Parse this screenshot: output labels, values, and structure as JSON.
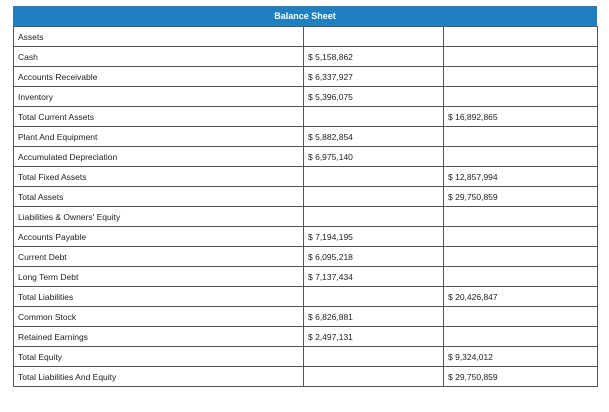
{
  "header": {
    "title": "Balance Sheet"
  },
  "table": {
    "rows": [
      {
        "label": "Assets"
      },
      {
        "label": "Cash",
        "amount": "$ 5,158,862"
      },
      {
        "label": "Accounts Receivable",
        "amount": "$ 6,337,927"
      },
      {
        "label": "Inventory",
        "amount": "$ 5,396,075"
      },
      {
        "label": "Total Current Assets",
        "total": "$ 16,892,865"
      },
      {
        "label": "Plant And Equipment",
        "amount": "$ 5,882,854"
      },
      {
        "label": "Accumulated Depreciation",
        "amount": "$ 6,975,140"
      },
      {
        "label": "Total Fixed Assets",
        "total": "$ 12,857,994"
      },
      {
        "label": "Total Assets",
        "total": "$ 29,750,859"
      },
      {
        "label": "Liabilities & Owners' Equity"
      },
      {
        "label": "Accounts Payable",
        "amount": "$ 7,194,195"
      },
      {
        "label": "Current Debt",
        "amount": "$ 6,095,218"
      },
      {
        "label": "Long Term Debt",
        "amount": "$ 7,137,434"
      },
      {
        "label": "Total Liabilities",
        "total": "$ 20,426,847"
      },
      {
        "label": "Common Stock",
        "amount": "$ 6,826,881"
      },
      {
        "label": "Retained Earnings",
        "amount": "$ 2,497,131"
      },
      {
        "label": "Total Equity",
        "total": "$ 9,324,012"
      },
      {
        "label": "Total Liabilities And Equity",
        "total": "$ 29,750,859"
      }
    ]
  }
}
